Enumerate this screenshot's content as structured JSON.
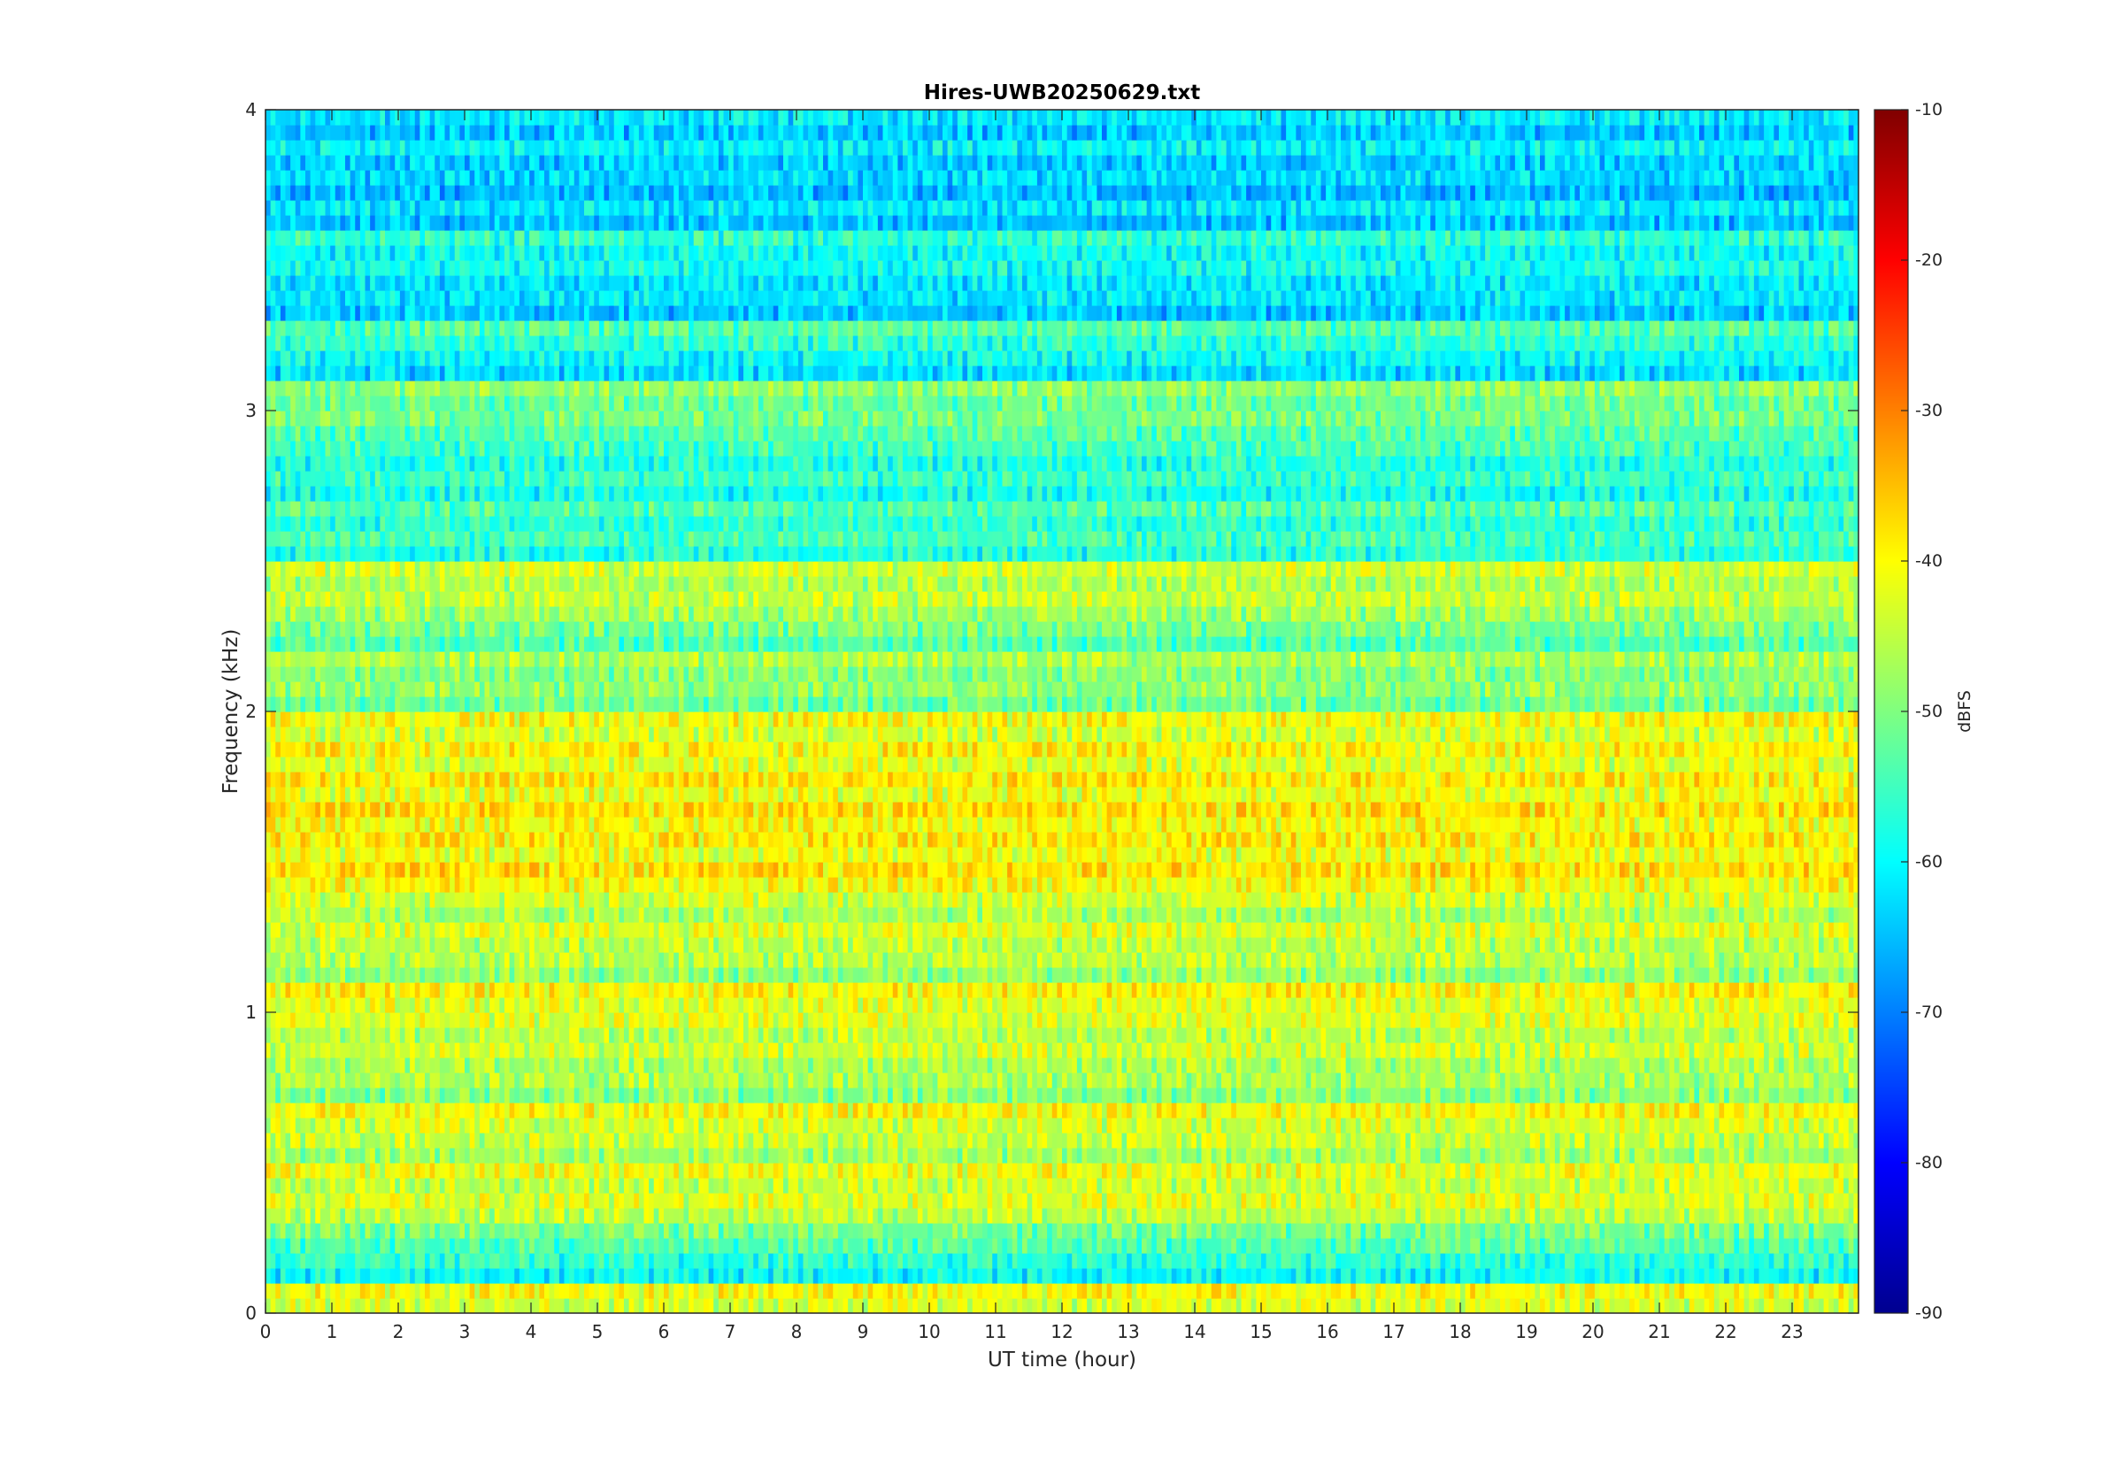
{
  "chart_data": {
    "type": "heatmap",
    "title": "Hires-UWB20250629.txt",
    "xlabel": "UT time (hour)",
    "ylabel": "Frequency (kHz)",
    "xlim": [
      0,
      24
    ],
    "ylim": [
      0,
      4
    ],
    "x_ticks": [
      "0",
      "1",
      "2",
      "3",
      "4",
      "5",
      "6",
      "7",
      "8",
      "9",
      "10",
      "11",
      "12",
      "13",
      "14",
      "15",
      "16",
      "17",
      "18",
      "19",
      "20",
      "21",
      "22",
      "23"
    ],
    "y_ticks": [
      "0",
      "1",
      "2",
      "3",
      "4"
    ],
    "colormap": "jet",
    "colorbar": {
      "label": "dBFS",
      "range": [
        -90,
        -10
      ],
      "ticks": [
        "-10",
        "-20",
        "-30",
        "-40",
        "-50",
        "-60",
        "-70",
        "-80",
        "-90"
      ]
    },
    "band_spacing_khz": 0.1,
    "band_levels_dbfs": [
      {
        "freq_khz": 0.05,
        "level": -42
      },
      {
        "freq_khz": 0.15,
        "level": -58
      },
      {
        "freq_khz": 0.25,
        "level": -52
      },
      {
        "freq_khz": 0.35,
        "level": -44
      },
      {
        "freq_khz": 0.45,
        "level": -43
      },
      {
        "freq_khz": 0.55,
        "level": -46
      },
      {
        "freq_khz": 0.65,
        "level": -42
      },
      {
        "freq_khz": 0.75,
        "level": -48
      },
      {
        "freq_khz": 0.85,
        "level": -45
      },
      {
        "freq_khz": 0.95,
        "level": -44
      },
      {
        "freq_khz": 1.05,
        "level": -41
      },
      {
        "freq_khz": 1.15,
        "level": -47
      },
      {
        "freq_khz": 1.25,
        "level": -44
      },
      {
        "freq_khz": 1.35,
        "level": -45
      },
      {
        "freq_khz": 1.45,
        "level": -39
      },
      {
        "freq_khz": 1.55,
        "level": -40
      },
      {
        "freq_khz": 1.65,
        "level": -39
      },
      {
        "freq_khz": 1.75,
        "level": -40
      },
      {
        "freq_khz": 1.85,
        "level": -41
      },
      {
        "freq_khz": 1.95,
        "level": -42
      },
      {
        "freq_khz": 2.05,
        "level": -50
      },
      {
        "freq_khz": 2.15,
        "level": -48
      },
      {
        "freq_khz": 2.25,
        "level": -52
      },
      {
        "freq_khz": 2.35,
        "level": -46
      },
      {
        "freq_khz": 2.45,
        "level": -45
      },
      {
        "freq_khz": 2.55,
        "level": -56
      },
      {
        "freq_khz": 2.65,
        "level": -55
      },
      {
        "freq_khz": 2.75,
        "level": -57
      },
      {
        "freq_khz": 2.85,
        "level": -56
      },
      {
        "freq_khz": 2.95,
        "level": -52
      },
      {
        "freq_khz": 3.05,
        "level": -50
      },
      {
        "freq_khz": 3.15,
        "level": -61
      },
      {
        "freq_khz": 3.25,
        "level": -55
      },
      {
        "freq_khz": 3.35,
        "level": -63
      },
      {
        "freq_khz": 3.45,
        "level": -60
      },
      {
        "freq_khz": 3.55,
        "level": -58
      },
      {
        "freq_khz": 3.65,
        "level": -63
      },
      {
        "freq_khz": 3.75,
        "level": -64
      },
      {
        "freq_khz": 3.85,
        "level": -62
      },
      {
        "freq_khz": 3.95,
        "level": -63
      }
    ]
  }
}
